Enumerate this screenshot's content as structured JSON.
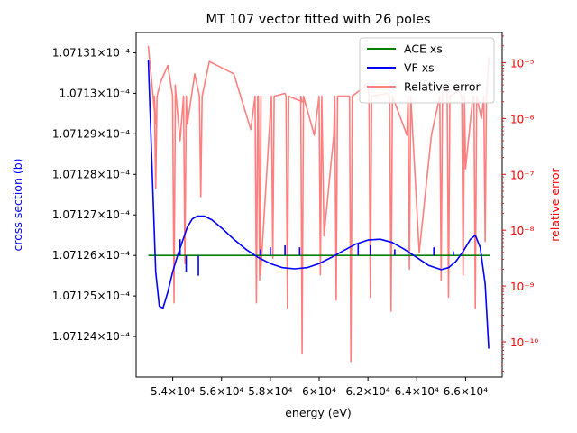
{
  "chart_data": {
    "type": "line",
    "title": "MT 107 vector fitted with 26 poles",
    "xlabel": "energy (eV)",
    "ylabel": "cross section (b)",
    "y2label": "relative error",
    "xlim": [
      52500,
      67500
    ],
    "ylim": [
      0.000107123,
      0.0001071315
    ],
    "y2lim_log": [
      -10.63,
      -4.46
    ],
    "y2scale": "log",
    "colors": {
      "ace": "#008000",
      "vf": "#0000ff",
      "err": "#ff7f7f",
      "y2axis": "#ff0000",
      "y2label": "#ff0000",
      "ylabel": "#0000ff"
    },
    "x_ticks": [
      {
        "value": 54000,
        "label": "5.4×10⁴"
      },
      {
        "value": 56000,
        "label": "5.6×10⁴"
      },
      {
        "value": 58000,
        "label": "5.8×10⁴"
      },
      {
        "value": 60000,
        "label": "6×10⁴"
      },
      {
        "value": 62000,
        "label": "6.2×10⁴"
      },
      {
        "value": 64000,
        "label": "6.4×10⁴"
      },
      {
        "value": 66000,
        "label": "6.6×10⁴"
      }
    ],
    "y_ticks": [
      {
        "value": 0.000107131,
        "label": "1.07131×10⁻⁴"
      },
      {
        "value": 0.00010713,
        "label": "1.0713×10⁻⁴"
      },
      {
        "value": 0.000107129,
        "label": "1.07129×10⁻⁴"
      },
      {
        "value": 0.000107128,
        "label": "1.07128×10⁻⁴"
      },
      {
        "value": 0.000107127,
        "label": "1.07127×10⁻⁴"
      },
      {
        "value": 0.000107126,
        "label": "1.07126×10⁻⁴"
      },
      {
        "value": 0.000107125,
        "label": "1.07125×10⁻⁴"
      },
      {
        "value": 0.000107124,
        "label": "1.07124×10⁻⁴"
      }
    ],
    "y2_ticks": [
      {
        "value": -5,
        "label": "10⁻⁵"
      },
      {
        "value": -6,
        "label": "10⁻⁶"
      },
      {
        "value": -7,
        "label": "10⁻⁷"
      },
      {
        "value": -8,
        "label": "10⁻⁸"
      },
      {
        "value": -9,
        "label": "10⁻⁹"
      },
      {
        "value": -10,
        "label": "10⁻¹⁰"
      }
    ],
    "legend": {
      "placement": "top-right",
      "entries": [
        "ACE xs",
        "VF xs",
        "Relative error"
      ]
    },
    "series": [
      {
        "name": "ACE xs",
        "axis": "left",
        "x": [
          53000,
          67000
        ],
        "y": [
          0.000107126,
          0.000107126
        ]
      },
      {
        "name": "VF xs",
        "axis": "left",
        "x": [
          53000,
          53150,
          53300,
          53450,
          53600,
          53800,
          54000,
          54200,
          54400,
          54600,
          54800,
          55000,
          55300,
          55600,
          56000,
          56500,
          57000,
          57500,
          58000,
          58500,
          59000,
          59500,
          60000,
          60500,
          61000,
          61500,
          62000,
          62500,
          63000,
          63500,
          64000,
          64500,
          65000,
          65300,
          65600,
          65900,
          66200,
          66400,
          66600,
          66800,
          66950
        ],
        "y": [
          0.00010713083,
          0.0001071282,
          0.0001071256,
          0.00010712475,
          0.0001071247,
          0.0001071251,
          0.0001071256,
          0.000107126,
          0.00010712635,
          0.0001071267,
          0.0001071269,
          0.00010712697,
          0.00010712697,
          0.00010712688,
          0.00010712668,
          0.0001071264,
          0.00010712615,
          0.00010712595,
          0.0001071258,
          0.0001071257,
          0.00010712567,
          0.0001071257,
          0.0001071258,
          0.00010712595,
          0.00010712612,
          0.00010712628,
          0.00010712638,
          0.0001071264,
          0.00010712632,
          0.00010712615,
          0.00010712595,
          0.00010712575,
          0.00010712565,
          0.0001071257,
          0.00010712585,
          0.0001071261,
          0.0001071264,
          0.0001071265,
          0.0001071262,
          0.0001071253,
          0.0001071237
        ]
      },
      {
        "name": "Relative error",
        "axis": "right",
        "x_log10y": [
          [
            53000,
            -4.7
          ],
          [
            53300,
            -6.1
          ],
          [
            53500,
            -5.35
          ],
          [
            53800,
            -5.05
          ],
          [
            54100,
            -5.4
          ],
          [
            54300,
            -6.4
          ],
          [
            54600,
            -6.1
          ],
          [
            54900,
            -5.2
          ],
          [
            55500,
            -4.98
          ],
          [
            56500,
            -5.2
          ],
          [
            57200,
            -6.2
          ],
          [
            57600,
            -8.8
          ],
          [
            58000,
            -5.9
          ],
          [
            58600,
            -5.55
          ],
          [
            59300,
            -5.7
          ],
          [
            59800,
            -6.3
          ],
          [
            60200,
            -8.1
          ],
          [
            60600,
            -6.3
          ],
          [
            61200,
            -5.6
          ],
          [
            62000,
            -5.38
          ],
          [
            62800,
            -5.55
          ],
          [
            63600,
            -6.3
          ],
          [
            64100,
            -8.4
          ],
          [
            64600,
            -6.3
          ],
          [
            65200,
            -5.4
          ],
          [
            65700,
            -5.5
          ],
          [
            66000,
            -6.9
          ],
          [
            66300,
            -5.6
          ],
          [
            66650,
            -6.0
          ],
          [
            66950,
            -4.9
          ]
        ],
        "dips": [
          [
            53300,
            -7.25
          ],
          [
            54050,
            -9.3
          ],
          [
            54500,
            -8.6
          ],
          [
            55150,
            -7.4
          ],
          [
            57430,
            -9.3
          ],
          [
            57560,
            -8.9
          ],
          [
            58100,
            -8.5
          ],
          [
            58700,
            -9.4
          ],
          [
            59300,
            -10.2
          ],
          [
            60050,
            -8.8
          ],
          [
            60700,
            -9.25
          ],
          [
            61300,
            -10.35
          ],
          [
            62100,
            -9.2
          ],
          [
            62950,
            -9.45
          ],
          [
            63700,
            -8.7
          ],
          [
            65000,
            -8.9
          ],
          [
            65300,
            -9.2
          ],
          [
            65900,
            -8.8
          ],
          [
            66400,
            -9.4
          ],
          [
            66800,
            -8.2
          ]
        ],
        "spikes_vf": [
          [
            54300,
            0.0001071264
          ],
          [
            54550,
            0.0001071256
          ],
          [
            55050,
            0.0001071255
          ],
          [
            57600,
            0.00010712615
          ],
          [
            58000,
            0.0001071262
          ],
          [
            58600,
            0.00010712625
          ],
          [
            59200,
            0.0001071262
          ],
          [
            60900,
            0.000107126
          ],
          [
            61600,
            0.0001071263
          ],
          [
            62100,
            0.00010712625
          ],
          [
            63100,
            0.00010712615
          ],
          [
            64700,
            0.0001071262
          ],
          [
            65500,
            0.0001071261
          ],
          [
            66150,
            0.000107126
          ]
        ]
      }
    ]
  }
}
